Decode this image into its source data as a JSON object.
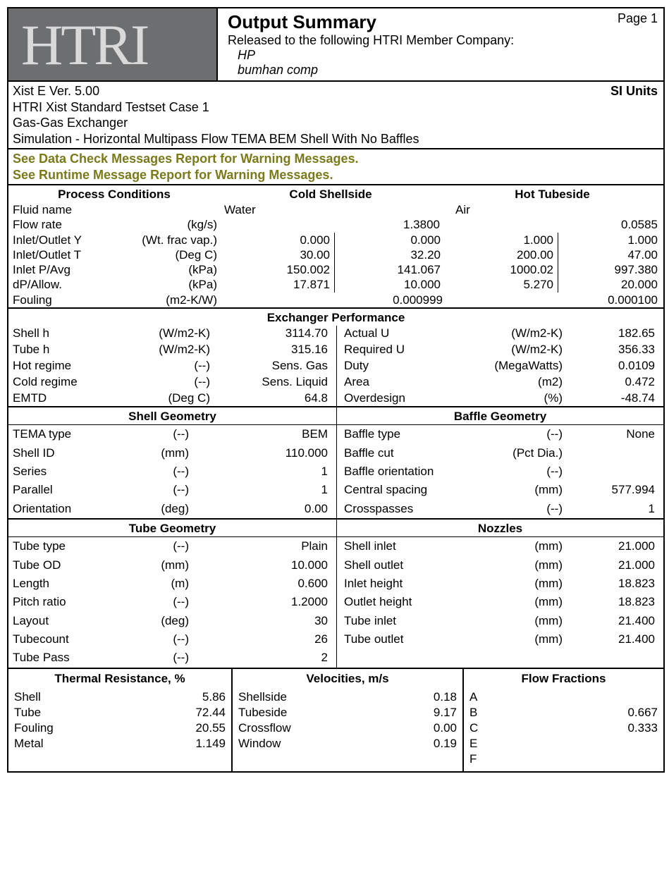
{
  "header": {
    "title": "Output Summary",
    "page": "Page 1",
    "released": "Released to the following HTRI Member Company:",
    "company1": "HP",
    "company2": "bumhan comp"
  },
  "info": {
    "line1": "Xist E Ver. 5.00",
    "line2": "HTRI Xist Standard Testset Case 1",
    "line3": "Gas-Gas Exchanger",
    "line4": "Simulation - Horizontal Multipass Flow TEMA BEM Shell With No Baffles",
    "units": "SI Units"
  },
  "warn": {
    "w1": "See Data Check Messages Report for Warning Messages.",
    "w2": "See Runtime Message Report for Warning Messages."
  },
  "pc": {
    "h1": "Process Conditions",
    "h2": "Cold Shellside",
    "h3": "Hot Tubeside",
    "fluid_name_label": "Fluid name",
    "cold_fluid": "Water",
    "hot_fluid": "Air",
    "rows": [
      {
        "label": "Flow rate",
        "unit": "(kg/s)",
        "c1": "",
        "c2": "1.3800",
        "c3": "",
        "c4": "0.0585",
        "nb": true
      },
      {
        "label": "Inlet/Outlet Y",
        "unit": "(Wt. frac vap.)",
        "c1": "0.000",
        "c2": "0.000",
        "c3": "1.000",
        "c4": "1.000"
      },
      {
        "label": "Inlet/Outlet T",
        "unit": "(Deg C)",
        "c1": "30.00",
        "c2": "32.20",
        "c3": "200.00",
        "c4": "47.00"
      },
      {
        "label": "Inlet P/Avg",
        "unit": "(kPa)",
        "c1": "150.002",
        "c2": "141.067",
        "c3": "1000.02",
        "c4": "997.380"
      },
      {
        "label": "dP/Allow.",
        "unit": "(kPa)",
        "c1": "17.871",
        "c2": "10.000",
        "c3": "5.270",
        "c4": "20.000"
      }
    ],
    "fouling": {
      "label": "Fouling",
      "unit": "(m2-K/W)",
      "cold": "0.000999",
      "hot": "0.000100"
    }
  },
  "ep": {
    "title": "Exchanger Performance",
    "left": [
      {
        "label": "Shell h",
        "unit": "(W/m2-K)",
        "val": "3114.70"
      },
      {
        "label": "Tube h",
        "unit": "(W/m2-K)",
        "val": "315.16"
      },
      {
        "label": "Hot regime",
        "unit": "(--)",
        "val": "Sens. Gas"
      },
      {
        "label": "Cold regime",
        "unit": "(--)",
        "val": "Sens. Liquid"
      },
      {
        "label": "EMTD",
        "unit": "(Deg C)",
        "val": "64.8"
      }
    ],
    "right": [
      {
        "label": "Actual U",
        "unit": "(W/m2-K)",
        "val": "182.65"
      },
      {
        "label": "Required U",
        "unit": "(W/m2-K)",
        "val": "356.33"
      },
      {
        "label": "Duty",
        "unit": "(MegaWatts)",
        "val": "0.0109"
      },
      {
        "label": "Area",
        "unit": "(m2)",
        "val": "0.472"
      },
      {
        "label": "Overdesign",
        "unit": "(%)",
        "val": "-48.74"
      }
    ]
  },
  "shell_geom": {
    "title": "Shell Geometry",
    "rows": [
      {
        "label": "TEMA type",
        "unit": "(--)",
        "val": "BEM"
      },
      {
        "label": "Shell ID",
        "unit": "(mm)",
        "val": "110.000"
      },
      {
        "label": "Series",
        "unit": "(--)",
        "val": "1"
      },
      {
        "label": "Parallel",
        "unit": "(--)",
        "val": "1"
      },
      {
        "label": "Orientation",
        "unit": "(deg)",
        "val": "0.00"
      }
    ]
  },
  "baffle_geom": {
    "title": "Baffle Geometry",
    "rows": [
      {
        "label": "Baffle type",
        "unit": "(--)",
        "val": "None"
      },
      {
        "label": "Baffle cut",
        "unit": "(Pct Dia.)",
        "val": ""
      },
      {
        "label": "Baffle orientation",
        "unit": "(--)",
        "val": ""
      },
      {
        "label": "Central spacing",
        "unit": "(mm)",
        "val": "577.994"
      },
      {
        "label": "Crosspasses",
        "unit": "(--)",
        "val": "1"
      }
    ]
  },
  "tube_geom": {
    "title": "Tube Geometry",
    "rows": [
      {
        "label": "Tube type",
        "unit": "(--)",
        "val": "Plain"
      },
      {
        "label": "Tube OD",
        "unit": "(mm)",
        "val": "10.000"
      },
      {
        "label": "Length",
        "unit": "(m)",
        "val": "0.600"
      },
      {
        "label": "Pitch ratio",
        "unit": "(--)",
        "val": "1.2000"
      },
      {
        "label": "Layout",
        "unit": "(deg)",
        "val": "30"
      },
      {
        "label": "Tubecount",
        "unit": "(--)",
        "val": "26"
      },
      {
        "label": "Tube Pass",
        "unit": "(--)",
        "val": "2"
      }
    ]
  },
  "nozzles": {
    "title": "Nozzles",
    "rows": [
      {
        "label": "Shell inlet",
        "unit": "(mm)",
        "val": "21.000"
      },
      {
        "label": "Shell outlet",
        "unit": "(mm)",
        "val": "21.000"
      },
      {
        "label": "Inlet height",
        "unit": "(mm)",
        "val": "18.823"
      },
      {
        "label": "Outlet height",
        "unit": "(mm)",
        "val": "18.823"
      },
      {
        "label": "Tube inlet",
        "unit": "(mm)",
        "val": "21.400"
      },
      {
        "label": "Tube outlet",
        "unit": "(mm)",
        "val": "21.400"
      }
    ]
  },
  "thermal": {
    "title": "Thermal Resistance, %",
    "rows": [
      {
        "label": "Shell",
        "val": "5.86"
      },
      {
        "label": "Tube",
        "val": "72.44"
      },
      {
        "label": "Fouling",
        "val": "20.55"
      },
      {
        "label": "Metal",
        "val": "1.149"
      }
    ]
  },
  "velocities": {
    "title": "Velocities, m/s",
    "rows": [
      {
        "label": "Shellside",
        "val": "0.18"
      },
      {
        "label": "Tubeside",
        "val": "9.17"
      },
      {
        "label": "Crossflow",
        "val": "0.00"
      },
      {
        "label": "Window",
        "val": "0.19"
      }
    ]
  },
  "flow": {
    "title": "Flow Fractions",
    "rows": [
      {
        "label": "A",
        "val": ""
      },
      {
        "label": "B",
        "val": "0.667"
      },
      {
        "label": "C",
        "val": "0.333"
      },
      {
        "label": "E",
        "val": ""
      },
      {
        "label": "F",
        "val": ""
      }
    ]
  }
}
